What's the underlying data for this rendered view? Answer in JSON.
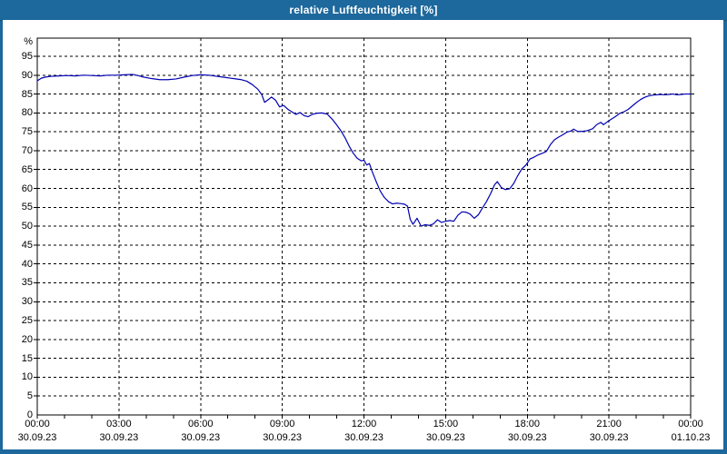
{
  "window": {
    "title": "relative Luftfeuchtigkeit [%]"
  },
  "colors": {
    "titlebar_bg": "#1d689c",
    "titlebar_text": "#ffffff",
    "titlebar_edge": "#155680",
    "window_border": "#1d689c",
    "plot_bg": "#ffffff",
    "axis": "#000000",
    "grid": "#000000",
    "text": "#000000",
    "line": "#0000b2"
  },
  "chart_data": {
    "type": "line",
    "title": "relative Luftfeuchtigkeit [%]",
    "xlabel": "",
    "ylabel": "%",
    "ylim": [
      0,
      100
    ],
    "grid": "dashed",
    "legend_position": "none",
    "y_ticks": [
      0,
      5,
      10,
      15,
      20,
      25,
      30,
      35,
      40,
      45,
      50,
      55,
      60,
      65,
      70,
      75,
      80,
      85,
      90,
      95
    ],
    "x_ticks": [
      {
        "hour": 0,
        "time": "00:00",
        "date": "30.09.23"
      },
      {
        "hour": 3,
        "time": "03:00",
        "date": "30.09.23"
      },
      {
        "hour": 6,
        "time": "06:00",
        "date": "30.09.23"
      },
      {
        "hour": 9,
        "time": "09:00",
        "date": "30.09.23"
      },
      {
        "hour": 12,
        "time": "12:00",
        "date": "30.09.23"
      },
      {
        "hour": 15,
        "time": "15:00",
        "date": "30.09.23"
      },
      {
        "hour": 18,
        "time": "18:00",
        "date": "30.09.23"
      },
      {
        "hour": 21,
        "time": "21:00",
        "date": "30.09.23"
      },
      {
        "hour": 24,
        "time": "00:00",
        "date": "01.10.23"
      }
    ],
    "minor_x_tick_every_hours": 1,
    "vertical_grid_every_hours": 3,
    "series": [
      {
        "name": "relative Luftfeuchtigkeit",
        "unit": "%",
        "color": "#0000b2",
        "points": [
          [
            0,
            88.5
          ],
          [
            0.15,
            89.2
          ],
          [
            0.3,
            89.5
          ],
          [
            0.5,
            89.7
          ],
          [
            0.8,
            89.8
          ],
          [
            1.1,
            89.9
          ],
          [
            1.4,
            89.8
          ],
          [
            1.7,
            90
          ],
          [
            2,
            89.9
          ],
          [
            2.3,
            89.8
          ],
          [
            2.6,
            90
          ],
          [
            2.9,
            90
          ],
          [
            3.2,
            90.1
          ],
          [
            3.5,
            90.2
          ],
          [
            3.7,
            89.9
          ],
          [
            3.9,
            89.5
          ],
          [
            4.2,
            89.1
          ],
          [
            4.5,
            88.8
          ],
          [
            4.8,
            88.8
          ],
          [
            5.1,
            89
          ],
          [
            5.4,
            89.5
          ],
          [
            5.7,
            89.9
          ],
          [
            6,
            90.1
          ],
          [
            6.3,
            90
          ],
          [
            6.6,
            89.7
          ],
          [
            6.9,
            89.4
          ],
          [
            7.2,
            89.1
          ],
          [
            7.5,
            88.8
          ],
          [
            7.7,
            88.4
          ],
          [
            7.9,
            87.5
          ],
          [
            8.1,
            86.3
          ],
          [
            8.25,
            84.8
          ],
          [
            8.35,
            82.8
          ],
          [
            8.5,
            83.6
          ],
          [
            8.6,
            84.2
          ],
          [
            8.75,
            83.4
          ],
          [
            8.9,
            81.6
          ],
          [
            9.05,
            82
          ],
          [
            9.2,
            81
          ],
          [
            9.35,
            80.3
          ],
          [
            9.5,
            79.6
          ],
          [
            9.65,
            80.1
          ],
          [
            9.8,
            79.3
          ],
          [
            9.95,
            79
          ],
          [
            10.1,
            79.6
          ],
          [
            10.25,
            79.9
          ],
          [
            10.45,
            80
          ],
          [
            10.65,
            79.7
          ],
          [
            10.85,
            78.2
          ],
          [
            11,
            76.8
          ],
          [
            11.15,
            75.3
          ],
          [
            11.3,
            73.5
          ],
          [
            11.45,
            71.3
          ],
          [
            11.6,
            69.4
          ],
          [
            11.75,
            68
          ],
          [
            11.9,
            67.3
          ],
          [
            12,
            67.5
          ],
          [
            12.1,
            66.2
          ],
          [
            12.2,
            66.6
          ],
          [
            12.3,
            64.5
          ],
          [
            12.45,
            61.8
          ],
          [
            12.6,
            59.3
          ],
          [
            12.75,
            57.6
          ],
          [
            12.9,
            56.5
          ],
          [
            13.05,
            55.9
          ],
          [
            13.2,
            56.1
          ],
          [
            13.35,
            56
          ],
          [
            13.5,
            55.8
          ],
          [
            13.6,
            55.3
          ],
          [
            13.7,
            51.8
          ],
          [
            13.8,
            50.5
          ],
          [
            13.95,
            52.1
          ],
          [
            14.1,
            50
          ],
          [
            14.25,
            50.4
          ],
          [
            14.4,
            50.2
          ],
          [
            14.55,
            50.6
          ],
          [
            14.7,
            51.7
          ],
          [
            14.85,
            51
          ],
          [
            15,
            51.3
          ],
          [
            15.15,
            51.5
          ],
          [
            15.3,
            51.3
          ],
          [
            15.45,
            52.9
          ],
          [
            15.6,
            53.8
          ],
          [
            15.75,
            53.7
          ],
          [
            15.9,
            53.2
          ],
          [
            16.05,
            52.1
          ],
          [
            16.2,
            53
          ],
          [
            16.35,
            54.8
          ],
          [
            16.5,
            56.5
          ],
          [
            16.65,
            58.6
          ],
          [
            16.8,
            61
          ],
          [
            16.9,
            61.8
          ],
          [
            17.05,
            60.2
          ],
          [
            17.2,
            59.7
          ],
          [
            17.35,
            59.9
          ],
          [
            17.5,
            61.3
          ],
          [
            17.65,
            63.4
          ],
          [
            17.8,
            65.2
          ],
          [
            17.95,
            66.2
          ],
          [
            18.1,
            67.8
          ],
          [
            18.25,
            68.3
          ],
          [
            18.4,
            68.9
          ],
          [
            18.55,
            69.3
          ],
          [
            18.7,
            69.8
          ],
          [
            18.85,
            71.6
          ],
          [
            19,
            72.9
          ],
          [
            19.15,
            73.6
          ],
          [
            19.3,
            74.2
          ],
          [
            19.45,
            74.9
          ],
          [
            19.6,
            75.2
          ],
          [
            19.7,
            75.7
          ],
          [
            19.85,
            75.1
          ],
          [
            20,
            75.1
          ],
          [
            20.2,
            75.3
          ],
          [
            20.4,
            75.8
          ],
          [
            20.55,
            76.9
          ],
          [
            20.7,
            77.5
          ],
          [
            20.8,
            76.9
          ],
          [
            20.95,
            77.7
          ],
          [
            21.1,
            78.4
          ],
          [
            21.25,
            79.1
          ],
          [
            21.4,
            79.9
          ],
          [
            21.55,
            80.3
          ],
          [
            21.7,
            80.9
          ],
          [
            21.85,
            81.8
          ],
          [
            22,
            82.7
          ],
          [
            22.15,
            83.5
          ],
          [
            22.3,
            84.1
          ],
          [
            22.45,
            84.5
          ],
          [
            22.6,
            84.7
          ],
          [
            22.75,
            84.8
          ],
          [
            22.9,
            84.9
          ],
          [
            23.05,
            84.8
          ],
          [
            23.2,
            84.9
          ],
          [
            23.35,
            85
          ],
          [
            23.5,
            84.8
          ],
          [
            23.65,
            84.9
          ],
          [
            23.8,
            85
          ],
          [
            24,
            85
          ]
        ]
      }
    ]
  }
}
